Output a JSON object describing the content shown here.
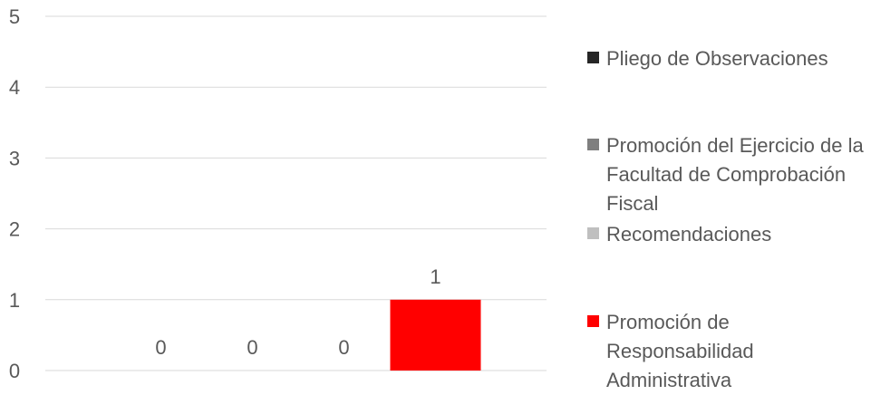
{
  "chart_data": {
    "type": "bar",
    "categories": [
      "",
      "",
      "",
      ""
    ],
    "series": [
      {
        "name": "Pliego de Observaciones",
        "values": [
          0,
          null,
          null,
          null
        ],
        "color": "#262626"
      },
      {
        "name": "Promoción del Ejercicio de la Facultad de Comprobación Fiscal",
        "values": [
          null,
          0,
          null,
          null
        ],
        "color": "#7f7f7f"
      },
      {
        "name": "Recomendaciones",
        "values": [
          null,
          null,
          0,
          null
        ],
        "color": "#bfbfbf"
      },
      {
        "name": "Promoción de Responsabilidad Administrativa",
        "values": [
          null,
          null,
          null,
          1
        ],
        "color": "#ff0000"
      }
    ],
    "data_labels": [
      "0",
      "0",
      "0",
      "1"
    ],
    "y_ticks": [
      "0",
      "1",
      "2",
      "3",
      "4",
      "5"
    ],
    "ylim": [
      0,
      5
    ],
    "grid": true,
    "legend_position": "right",
    "title": "",
    "xlabel": "",
    "ylabel": ""
  },
  "legend": {
    "items": [
      {
        "label": "Pliego de Observaciones",
        "color": "#262626"
      },
      {
        "label": "Promoción del Ejercicio de la Facultad de Comprobación Fiscal",
        "color": "#7f7f7f"
      },
      {
        "label": "Recomendaciones",
        "color": "#bfbfbf"
      },
      {
        "label": "Promoción de Responsabilidad Administrativa",
        "color": "#ff0000"
      }
    ]
  }
}
